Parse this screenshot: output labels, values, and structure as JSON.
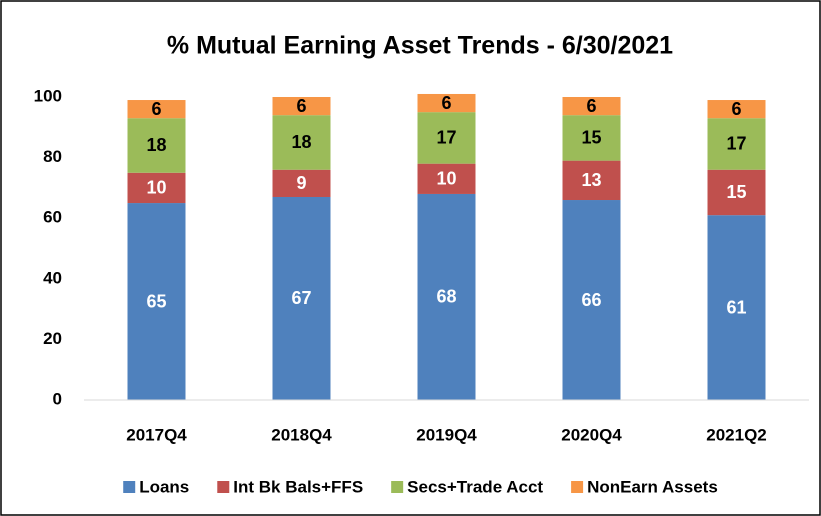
{
  "chart_data": {
    "type": "stacked_bar",
    "title": "% Mutual Earning Asset Trends - 6/30/2021",
    "categories": [
      "2017Q4",
      "2018Q4",
      "2019Q4",
      "2020Q4",
      "2021Q2"
    ],
    "series": [
      {
        "name": "Loans",
        "color": "#4f81bd",
        "values": [
          65,
          67,
          68,
          66,
          61
        ]
      },
      {
        "name": "Int Bk Bals+FFS",
        "color": "#c0504d",
        "values": [
          10,
          9,
          10,
          13,
          15
        ]
      },
      {
        "name": "Secs+Trade Acct",
        "color": "#9bbb59",
        "values": [
          18,
          18,
          17,
          15,
          17
        ]
      },
      {
        "name": "NonEarn Assets",
        "color": "#f79646",
        "values": [
          6,
          6,
          6,
          6,
          6
        ]
      }
    ],
    "ylim": [
      0,
      100
    ],
    "yticks": [
      0,
      20,
      40,
      60,
      80,
      100
    ],
    "legend": "bottom"
  }
}
